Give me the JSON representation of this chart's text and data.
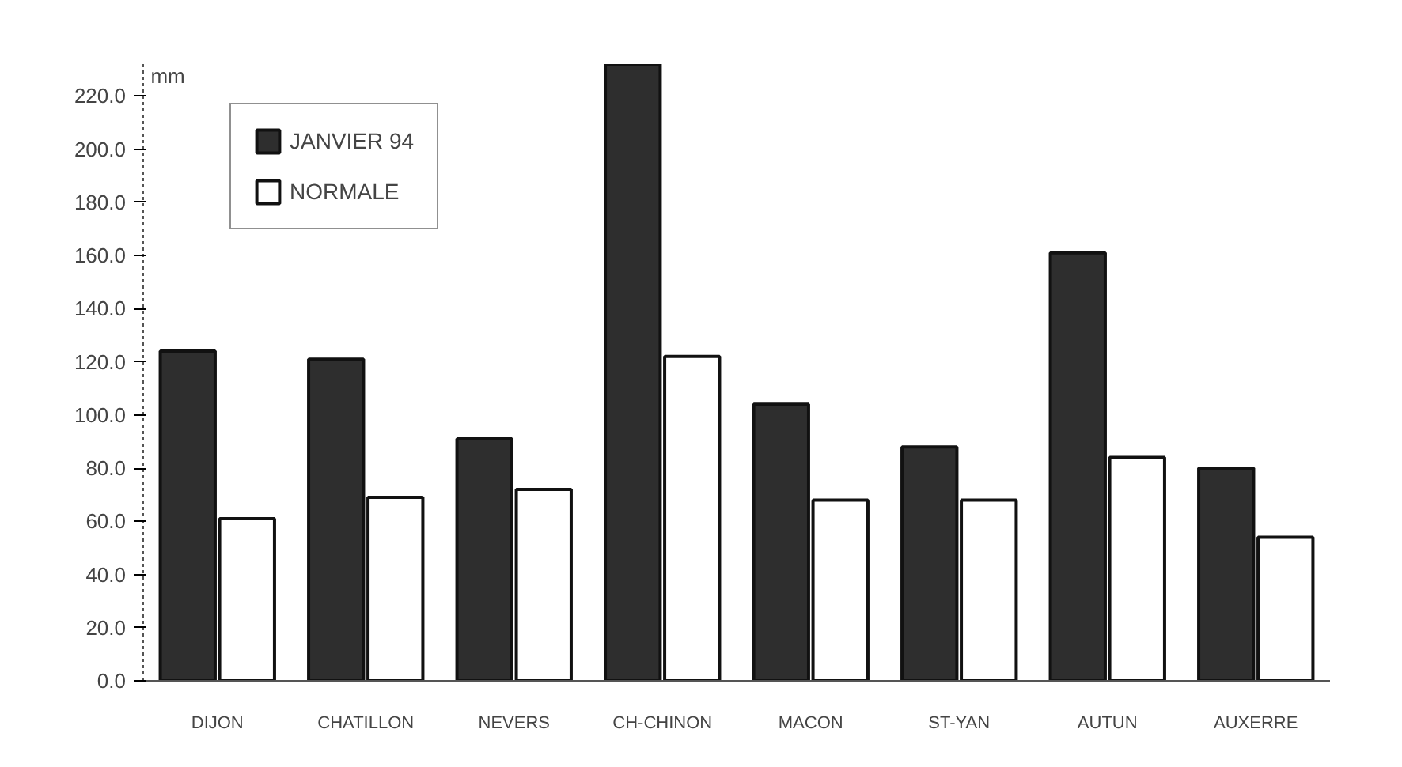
{
  "chart_data": {
    "type": "bar",
    "ylabel": "mm",
    "categories": [
      "DIJON",
      "CHATILLON",
      "NEVERS",
      "CH-CHINON",
      "MACON",
      "ST-YAN",
      "AUTUN",
      "AUXERRE"
    ],
    "series": [
      {
        "name": "JANVIER 94",
        "color": "#2e2e2e",
        "values": [
          124,
          121,
          91,
          232,
          104,
          88,
          161,
          80
        ]
      },
      {
        "name": "NORMALE",
        "color": "#ffffff",
        "values": [
          61,
          69,
          72,
          122,
          68,
          68,
          84,
          54
        ]
      }
    ],
    "ylim": [
      0,
      232
    ],
    "yticks": [
      {
        "value": 0,
        "label": "0.0"
      },
      {
        "value": 20,
        "label": "20.0"
      },
      {
        "value": 40,
        "label": "40.0"
      },
      {
        "value": 60,
        "label": "60.0"
      },
      {
        "value": 80,
        "label": "80.0"
      },
      {
        "value": 100,
        "label": "100.0"
      },
      {
        "value": 120,
        "label": "120.0"
      },
      {
        "value": 140,
        "label": "140.0"
      },
      {
        "value": 160,
        "label": "160.0"
      },
      {
        "value": 180,
        "label": "180.0"
      },
      {
        "value": 200,
        "label": "200.0"
      },
      {
        "value": 220,
        "label": "220.0"
      }
    ],
    "grid": false,
    "legend": "top left"
  }
}
